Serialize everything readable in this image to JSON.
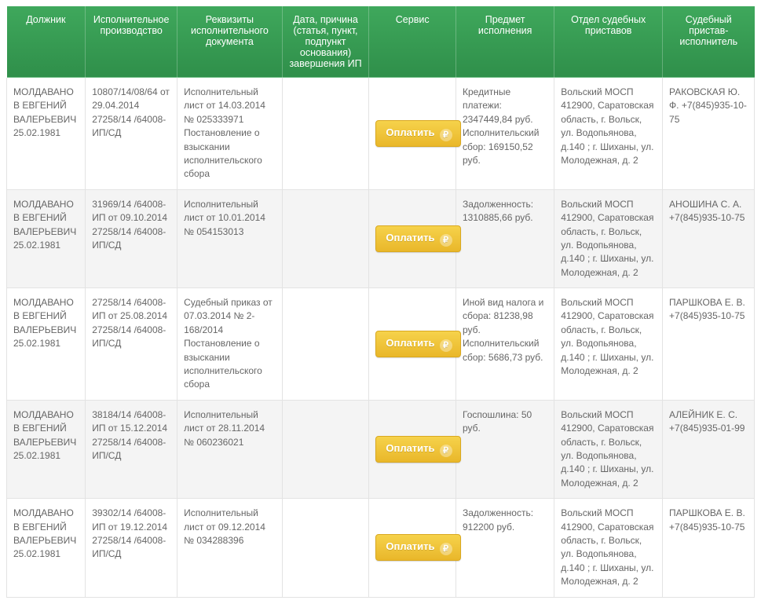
{
  "colors": {
    "header_gradient_top": "#3fa85c",
    "header_gradient_bottom": "#2f8f4a",
    "row_odd_bg": "#ffffff",
    "row_even_bg": "#f4f4f4",
    "border": "#e3e3e3",
    "text": "#666666",
    "btn_gradient_top": "#f6d24b",
    "btn_gradient_bottom": "#e9b72a",
    "btn_text": "#ffffff"
  },
  "button_label": "Оплатить",
  "ruble_glyph": "₽",
  "columns": [
    "Должник",
    "Исполнительное производство",
    "Реквизиты исполнительного документа",
    "Дата, причина (статья, пункт, подпункт основания) завершения ИП",
    "Сервис",
    "Предмет исполнения",
    "Отдел судебных приставов",
    "Судебный пристав-исполнитель"
  ],
  "rows": [
    {
      "debtor": "МОЛДАВАНОВ ЕВГЕНИЙ ВАЛЕРЬЕВИЧ 25.02.1981",
      "proceeding": "10807/14/08/64 от 29.04.2014 27258/14 /64008-ИП/СД",
      "doc": "Исполнительный лист от 14.03.2014 № 025333971 Постановление о взыскании исполнительского сбора",
      "reason": "",
      "subject": "Кредитные платежи: 2347449,84 руб. Исполнительский сбор: 169150,52 руб.",
      "dept": "Вольский МОСП 412900, Саратовская область, г. Вольск, ул. Водопьянова, д.140 ; г. Шиханы, ул. Молодежная, д. 2",
      "officer": "РАКОВСКАЯ Ю. Ф. +7(845)935-10-75"
    },
    {
      "debtor": "МОЛДАВАНОВ ЕВГЕНИЙ ВАЛЕРЬЕВИЧ 25.02.1981",
      "proceeding": "31969/14 /64008-ИП от 09.10.2014 27258/14 /64008-ИП/СД",
      "doc": "Исполнительный лист от 10.01.2014 № 054153013",
      "reason": "",
      "subject": "Задолженность: 1310885,66 руб.",
      "dept": "Вольский МОСП 412900, Саратовская область, г. Вольск, ул. Водопьянова, д.140 ; г. Шиханы, ул. Молодежная, д. 2",
      "officer": "АНОШИНА С. А. +7(845)935-10-75"
    },
    {
      "debtor": "МОЛДАВАНОВ ЕВГЕНИЙ ВАЛЕРЬЕВИЧ 25.02.1981",
      "proceeding": "27258/14 /64008-ИП от 25.08.2014 27258/14 /64008-ИП/СД",
      "doc": "Судебный приказ от 07.03.2014 № 2-168/2014 Постановление о взыскании исполнительского сбора",
      "reason": "",
      "subject": "Иной вид налога и сбора: 81238,98 руб. Исполнительский сбор: 5686,73 руб.",
      "dept": "Вольский МОСП 412900, Саратовская область, г. Вольск, ул. Водопьянова, д.140 ; г. Шиханы, ул. Молодежная, д. 2",
      "officer": "ПАРШКОВА Е. В. +7(845)935-10-75"
    },
    {
      "debtor": "МОЛДАВАНОВ ЕВГЕНИЙ ВАЛЕРЬЕВИЧ 25.02.1981",
      "proceeding": "38184/14 /64008-ИП от 15.12.2014 27258/14 /64008-ИП/СД",
      "doc": "Исполнительный лист от 28.11.2014 № 060236021",
      "reason": "",
      "subject": "Госпошлина: 50 руб.",
      "dept": "Вольский МОСП 412900, Саратовская область, г. Вольск, ул. Водопьянова, д.140 ; г. Шиханы, ул. Молодежная, д. 2",
      "officer": "АЛЕЙНИК Е. С. +7(845)935-01-99"
    },
    {
      "debtor": "МОЛДАВАНОВ ЕВГЕНИЙ ВАЛЕРЬЕВИЧ 25.02.1981",
      "proceeding": "39302/14 /64008-ИП от 19.12.2014 27258/14 /64008-ИП/СД",
      "doc": "Исполнительный лист от 09.12.2014 № 034288396",
      "reason": "",
      "subject": "Задолженность: 912200 руб.",
      "dept": "Вольский МОСП 412900, Саратовская область, г. Вольск, ул. Водопьянова, д.140 ; г. Шиханы, ул. Молодежная, д. 2",
      "officer": "ПАРШКОВА Е. В. +7(845)935-10-75"
    }
  ]
}
